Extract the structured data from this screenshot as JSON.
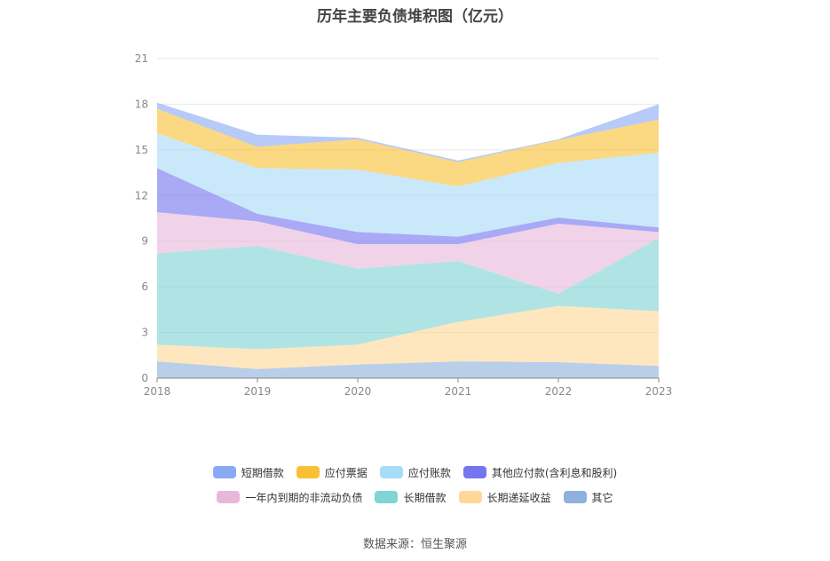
{
  "title": "历年主要负债堆积图（亿元）",
  "source": "数据来源：恒生聚源",
  "chart_data": {
    "type": "area",
    "stacked": true,
    "categories": [
      "2018",
      "2019",
      "2020",
      "2021",
      "2022",
      "2023"
    ],
    "ylim": [
      0,
      21
    ],
    "yticks": [
      0,
      3,
      6,
      9,
      12,
      15,
      18,
      21
    ],
    "grid": true,
    "legend_position": "bottom",
    "series": [
      {
        "name": "其它",
        "color": "#8eb0dc",
        "values": [
          1.1,
          0.6,
          0.9,
          1.1,
          1.05,
          0.8
        ]
      },
      {
        "name": "长期递延收益",
        "color": "#fed898",
        "values": [
          1.1,
          1.3,
          1.3,
          2.6,
          3.7,
          3.6
        ]
      },
      {
        "name": "长期借款",
        "color": "#7fd4d4",
        "values": [
          6.0,
          6.8,
          5.0,
          4.0,
          0.8,
          4.8
        ]
      },
      {
        "name": "一年内到期的非流动负债",
        "color": "#e8b8db",
        "values": [
          2.7,
          1.6,
          1.6,
          1.1,
          4.6,
          0.4
        ]
      },
      {
        "name": "其他应付款(含利息和股利)",
        "color": "#7575f0",
        "values": [
          2.9,
          0.5,
          0.8,
          0.5,
          0.4,
          0.3
        ]
      },
      {
        "name": "应付账款",
        "color": "#a8dcf8",
        "values": [
          2.3,
          3.0,
          4.1,
          3.3,
          3.6,
          4.9
        ]
      },
      {
        "name": "应付票据",
        "color": "#f9c035",
        "values": [
          1.6,
          1.4,
          2.0,
          1.6,
          1.5,
          2.2
        ]
      },
      {
        "name": "短期借款",
        "color": "#8aa9f4",
        "values": [
          0.4,
          0.8,
          0.1,
          0.1,
          0.05,
          1.0
        ]
      }
    ],
    "legend_order": [
      [
        "短期借款",
        "应付票据",
        "应付账款",
        "其他应付款(含利息和股利)"
      ],
      [
        "一年内到期的非流动负债",
        "长期借款",
        "长期递延收益",
        "其它"
      ]
    ]
  }
}
